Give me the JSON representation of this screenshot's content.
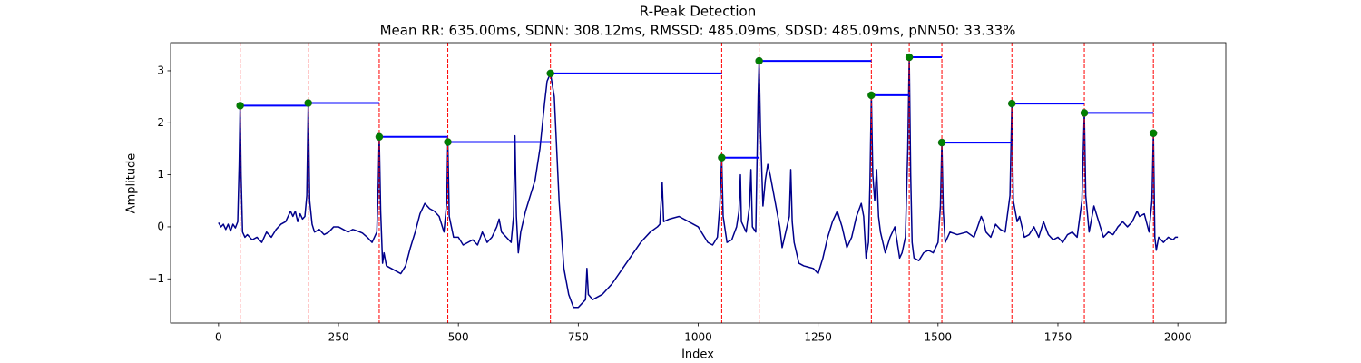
{
  "chart_data": {
    "type": "line",
    "title": "R-Peak Detection",
    "subtitle": "Mean RR: 635.00ms, SDNN: 308.12ms, RMSSD: 485.09ms, SDSD: 485.09ms, pNN50: 33.33%",
    "x_label": "Index",
    "y_label": "Amplitude",
    "xlim": [
      -100,
      2100
    ],
    "ylim": [
      -1.85,
      3.54
    ],
    "xticks": [
      0,
      250,
      500,
      750,
      1000,
      1250,
      1500,
      1750,
      2000
    ],
    "yticks": [
      {
        "value": -1,
        "label": "−1"
      },
      0,
      1,
      2,
      3
    ],
    "signal": {
      "color": "#00008b",
      "x": [
        0,
        5,
        10,
        15,
        20,
        25,
        30,
        35,
        40,
        43,
        45,
        47,
        50,
        55,
        60,
        70,
        80,
        90,
        100,
        110,
        120,
        130,
        140,
        150,
        155,
        160,
        165,
        170,
        175,
        180,
        184,
        187,
        190,
        195,
        200,
        210,
        220,
        230,
        240,
        250,
        260,
        270,
        280,
        290,
        300,
        310,
        320,
        330,
        333,
        335,
        338,
        342,
        345,
        350,
        360,
        370,
        380,
        390,
        400,
        410,
        420,
        430,
        440,
        450,
        460,
        470,
        476,
        478,
        481,
        490,
        500,
        510,
        520,
        530,
        540,
        550,
        560,
        570,
        580,
        585,
        590,
        600,
        610,
        615,
        618,
        621,
        625,
        630,
        640,
        650,
        660,
        670,
        680,
        685,
        692,
        700,
        710,
        720,
        730,
        740,
        750,
        760,
        765,
        768,
        771,
        780,
        800,
        820,
        850,
        880,
        900,
        915,
        920,
        925,
        928,
        940,
        960,
        980,
        1000,
        1020,
        1030,
        1040,
        1045,
        1049,
        1052,
        1060,
        1070,
        1080,
        1085,
        1088,
        1090,
        1100,
        1107,
        1110,
        1113,
        1120,
        1125,
        1127,
        1130,
        1135,
        1140,
        1145,
        1150,
        1160,
        1170,
        1175,
        1180,
        1185,
        1190,
        1193,
        1196,
        1200,
        1210,
        1220,
        1240,
        1250,
        1260,
        1270,
        1280,
        1290,
        1300,
        1310,
        1320,
        1330,
        1340,
        1345,
        1350,
        1355,
        1358,
        1361,
        1364,
        1368,
        1372,
        1376,
        1380,
        1385,
        1390,
        1400,
        1410,
        1415,
        1420,
        1425,
        1432,
        1437,
        1440,
        1443,
        1446,
        1450,
        1460,
        1470,
        1480,
        1490,
        1500,
        1505,
        1508,
        1511,
        1515,
        1525,
        1540,
        1560,
        1575,
        1590,
        1595,
        1600,
        1610,
        1620,
        1630,
        1640,
        1650,
        1654,
        1657,
        1665,
        1670,
        1680,
        1690,
        1700,
        1710,
        1720,
        1730,
        1740,
        1750,
        1760,
        1770,
        1780,
        1790,
        1800,
        1805,
        1808,
        1815,
        1825,
        1835,
        1845,
        1855,
        1865,
        1875,
        1885,
        1895,
        1905,
        1915,
        1920,
        1930,
        1940,
        1946,
        1949,
        1952,
        1955,
        1960,
        1970,
        1980,
        1990,
        1995,
        2000
      ],
      "values": [
        0.08,
        0,
        0.05,
        -0.05,
        0.05,
        -0.08,
        0.05,
        -0.02,
        0.1,
        1.2,
        2.33,
        1.0,
        -0.1,
        -0.2,
        -0.15,
        -0.25,
        -0.2,
        -0.3,
        -0.1,
        -0.2,
        -0.05,
        0.05,
        0.1,
        0.3,
        0.2,
        0.3,
        0.1,
        0.25,
        0.15,
        0.2,
        0.6,
        2.38,
        0.5,
        0.05,
        -0.1,
        -0.05,
        -0.15,
        -0.1,
        0,
        0,
        -0.05,
        -0.1,
        -0.05,
        -0.08,
        -0.12,
        -0.2,
        -0.3,
        -0.1,
        0.8,
        1.73,
        0.3,
        -0.7,
        -0.5,
        -0.75,
        -0.8,
        -0.85,
        -0.9,
        -0.75,
        -0.4,
        -0.1,
        0.25,
        0.45,
        0.35,
        0.3,
        0.2,
        -0.1,
        0.5,
        1.63,
        0.2,
        -0.2,
        -0.2,
        -0.35,
        -0.3,
        -0.25,
        -0.35,
        -0.1,
        -0.3,
        -0.2,
        0,
        0.15,
        -0.1,
        -0.2,
        -0.3,
        0.2,
        1.75,
        0.2,
        -0.5,
        -0.1,
        0.3,
        0.6,
        0.9,
        1.5,
        2.4,
        2.8,
        2.95,
        2.5,
        0.5,
        -0.8,
        -1.3,
        -1.55,
        -1.55,
        -1.45,
        -1.4,
        -0.8,
        -1.3,
        -1.4,
        -1.3,
        -1.1,
        -0.7,
        -0.3,
        -0.1,
        0,
        0.05,
        0.85,
        0.1,
        0.15,
        0.2,
        0.1,
        0,
        -0.3,
        -0.35,
        -0.2,
        0.4,
        1.33,
        0.2,
        -0.3,
        -0.25,
        0,
        0.3,
        1.0,
        0.1,
        -0.1,
        0.4,
        1.1,
        0,
        -0.1,
        2.5,
        3.19,
        1.8,
        0.4,
        0.9,
        1.2,
        1.0,
        0.5,
        0,
        -0.4,
        -0.2,
        0,
        0.2,
        1.1,
        0.1,
        -0.3,
        -0.7,
        -0.75,
        -0.8,
        -0.9,
        -0.6,
        -0.2,
        0.1,
        0.3,
        0,
        -0.4,
        -0.2,
        0.2,
        0.45,
        0.2,
        -0.6,
        -0.3,
        0.8,
        2.53,
        1.0,
        0.5,
        1.1,
        0.2,
        -0.1,
        -0.3,
        -0.5,
        -0.2,
        0,
        -0.3,
        -0.6,
        -0.5,
        -0.2,
        1.5,
        3.26,
        1.0,
        -0.3,
        -0.6,
        -0.65,
        -0.5,
        -0.45,
        -0.5,
        -0.3,
        0.4,
        1.62,
        0.3,
        -0.3,
        -0.1,
        -0.15,
        -0.1,
        -0.2,
        0.2,
        0.1,
        -0.1,
        -0.2,
        0.05,
        -0.05,
        -0.1,
        0.6,
        2.37,
        0.5,
        0.1,
        0.2,
        -0.2,
        -0.15,
        0,
        -0.2,
        0.1,
        -0.15,
        -0.25,
        -0.2,
        -0.3,
        -0.15,
        -0.1,
        -0.2,
        0.5,
        2.19,
        0.6,
        -0.1,
        0.4,
        0.1,
        -0.2,
        -0.1,
        -0.15,
        0,
        0.1,
        0,
        0.1,
        0.3,
        0.2,
        0.25,
        -0.1,
        0.5,
        1.8,
        -0.2,
        -0.45,
        -0.2,
        -0.3,
        -0.2,
        -0.25,
        -0.2,
        -0.2
      ]
    },
    "peaks": {
      "color": "green",
      "line_color": "red",
      "interval_color": "blue",
      "x": [
        45,
        187,
        335,
        478,
        692,
        1049,
        1127,
        1361,
        1440,
        1508,
        1654,
        1805,
        1949
      ],
      "values": [
        2.33,
        2.38,
        1.73,
        1.63,
        2.95,
        1.33,
        3.19,
        2.53,
        3.26,
        1.62,
        2.37,
        2.19,
        1.8
      ]
    }
  }
}
